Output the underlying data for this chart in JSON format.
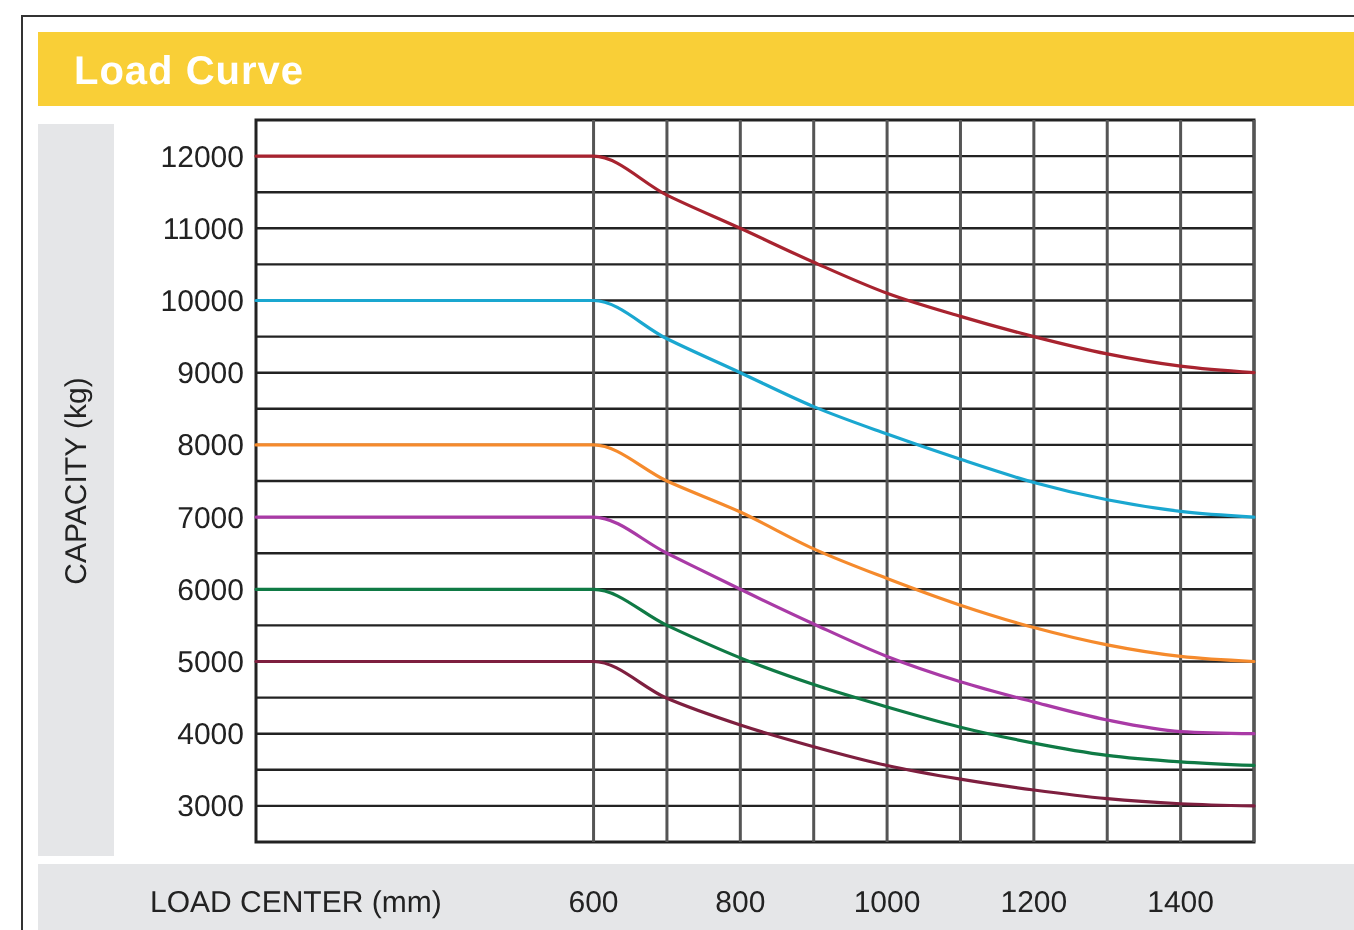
{
  "chart_data": {
    "type": "line",
    "title": "Load Curve",
    "xlabel": "LOAD CENTER (mm)",
    "ylabel": "CAPACITY (kg)",
    "x": [
      140,
      600,
      700,
      800,
      900,
      1000,
      1100,
      1200,
      1300,
      1400,
      1500
    ],
    "xlim": [
      140,
      1500
    ],
    "xticks": [
      600,
      {
        "value": 700,
        "label": null
      },
      800,
      {
        "value": 900,
        "label": null
      },
      1000,
      {
        "value": 1100,
        "label": null
      },
      1200,
      {
        "value": 1300,
        "label": null
      },
      1400,
      {
        "value": 1500,
        "label": null
      }
    ],
    "ylim": [
      2500,
      12500
    ],
    "yticks": [
      3000,
      {
        "value": 3500,
        "label": null
      },
      4000,
      {
        "value": 4500,
        "label": null
      },
      5000,
      {
        "value": 5500,
        "label": null
      },
      6000,
      {
        "value": 6500,
        "label": null
      },
      7000,
      {
        "value": 7500,
        "label": null
      },
      8000,
      {
        "value": 8500,
        "label": null
      },
      9000,
      {
        "value": 9500,
        "label": null
      },
      10000,
      {
        "value": 10500,
        "label": null
      },
      11000,
      {
        "value": 11500,
        "label": null
      },
      12000
    ],
    "grid": true,
    "marker": "none",
    "line_style": "solid",
    "series": [
      {
        "color": "#a8232f",
        "values": [
          12000,
          12000,
          11460,
          11000,
          10530,
          10100,
          9780,
          9500,
          9260,
          9090,
          9000
        ]
      },
      {
        "color": "#1aa7d0",
        "values": [
          10000,
          10000,
          9470,
          9000,
          8530,
          8150,
          7800,
          7480,
          7240,
          7080,
          7000
        ]
      },
      {
        "color": "#f58a2c",
        "values": [
          8000,
          8000,
          7500,
          7070,
          6560,
          6150,
          5780,
          5470,
          5230,
          5070,
          5000
        ]
      },
      {
        "color": "#a93aa6",
        "values": [
          7000,
          7000,
          6500,
          6000,
          5520,
          5070,
          4720,
          4440,
          4190,
          4030,
          4000
        ]
      },
      {
        "color": "#0f7a45",
        "values": [
          6000,
          6000,
          5500,
          5050,
          4680,
          4370,
          4090,
          3870,
          3700,
          3610,
          3560
        ]
      },
      {
        "color": "#7e1f3f",
        "values": [
          5000,
          5000,
          4490,
          4120,
          3820,
          3560,
          3370,
          3220,
          3100,
          3030,
          3000
        ]
      }
    ]
  }
}
